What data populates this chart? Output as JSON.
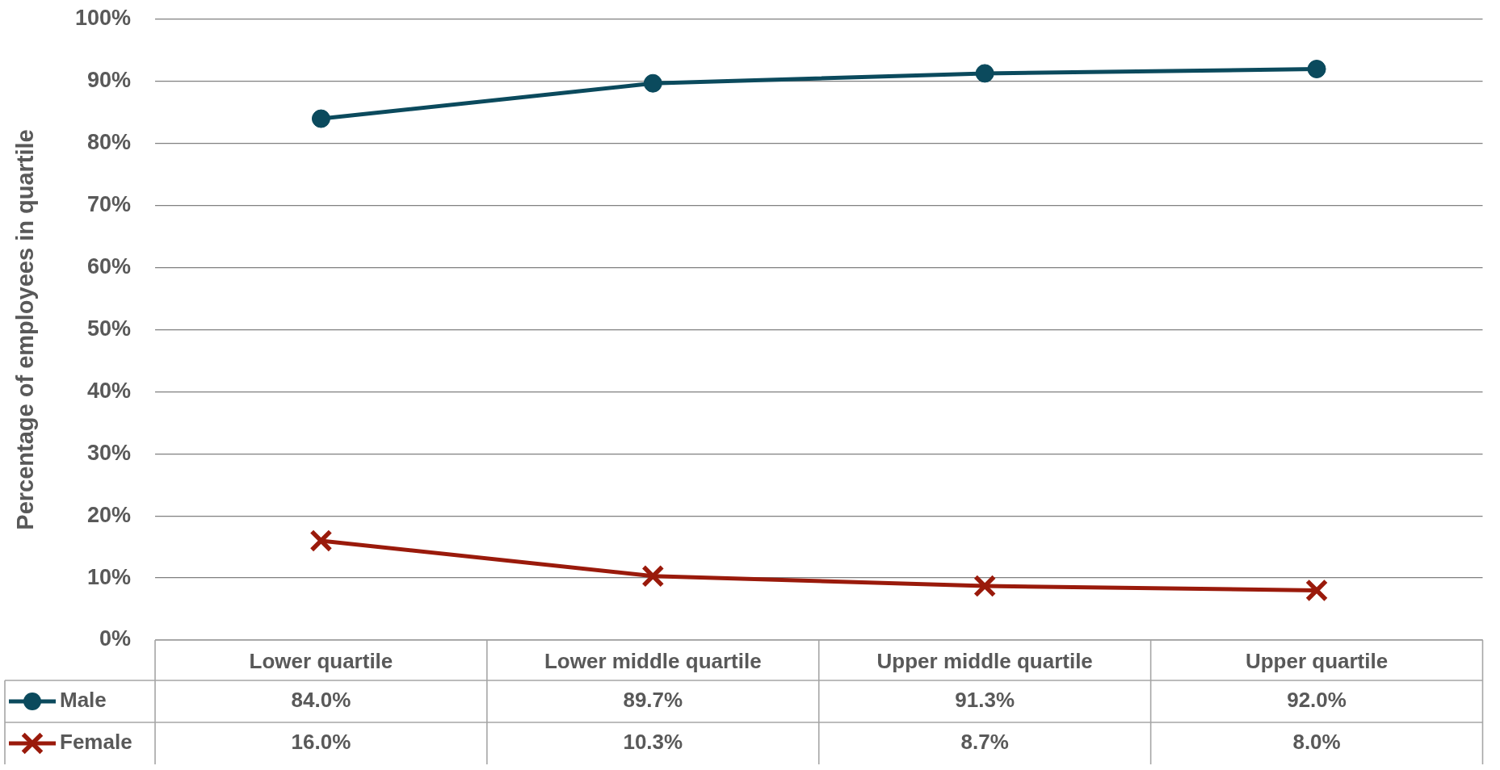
{
  "chart_data": {
    "type": "line",
    "categories": [
      "Lower quartile",
      "Lower middle quartile",
      "Upper middle quartile",
      "Upper quartile"
    ],
    "series": [
      {
        "name": "Male",
        "color": "#0b4a5d",
        "marker": "circle",
        "values": [
          84.0,
          89.7,
          91.3,
          92.0
        ],
        "value_labels": [
          "84.0%",
          "89.7%",
          "91.3%",
          "92.0%"
        ]
      },
      {
        "name": "Female",
        "color": "#9a1a0b",
        "marker": "cross",
        "values": [
          16.0,
          10.3,
          8.7,
          8.0
        ],
        "value_labels": [
          "16.0%",
          "10.3%",
          "8.7%",
          "8.0%"
        ]
      }
    ],
    "ylabel": "Percentage of employees in quartile",
    "ylim": [
      0,
      100
    ],
    "yticks": [
      {
        "value": 0,
        "label": "0%"
      },
      {
        "value": 10,
        "label": "10%"
      },
      {
        "value": 20,
        "label": "20%"
      },
      {
        "value": 30,
        "label": "30%"
      },
      {
        "value": 40,
        "label": "40%"
      },
      {
        "value": 50,
        "label": "50%"
      },
      {
        "value": 60,
        "label": "60%"
      },
      {
        "value": 70,
        "label": "70%"
      },
      {
        "value": 80,
        "label": "80%"
      },
      {
        "value": 90,
        "label": "90%"
      },
      {
        "value": 100,
        "label": "100%"
      }
    ],
    "grid": "y",
    "legend": "bottom left"
  }
}
